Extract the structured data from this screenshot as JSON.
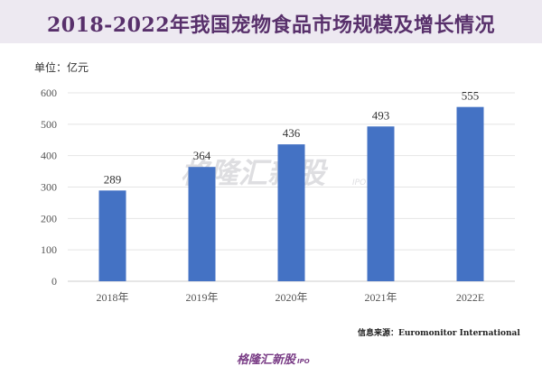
{
  "header": {
    "title": "2018-2022年我国宠物食品市场规模及增长情况",
    "unit_label": "单位：亿元"
  },
  "source_note": "信息来源：Euromonitor International",
  "brand": {
    "name": "格隆汇新股",
    "sub": "IPO"
  },
  "watermark": {
    "text": "格隆汇新股",
    "sub": "IPO"
  },
  "chart_data": {
    "type": "bar",
    "categories": [
      "2018年",
      "2019年",
      "2020年",
      "2021年",
      "2022E"
    ],
    "values": [
      289,
      364,
      436,
      493,
      555
    ],
    "data_labels": [
      "289",
      "364",
      "436",
      "493",
      "555"
    ],
    "ylim": [
      0,
      600
    ],
    "yticks": [
      0,
      100,
      200,
      300,
      400,
      500,
      600
    ],
    "grid": true,
    "bar_color": "#4472c4",
    "grid_color": "#e4e4e4",
    "title": "2018-2022年我国宠物食品市场规模及增长情况",
    "xlabel": "",
    "ylabel": "单位：亿元"
  }
}
